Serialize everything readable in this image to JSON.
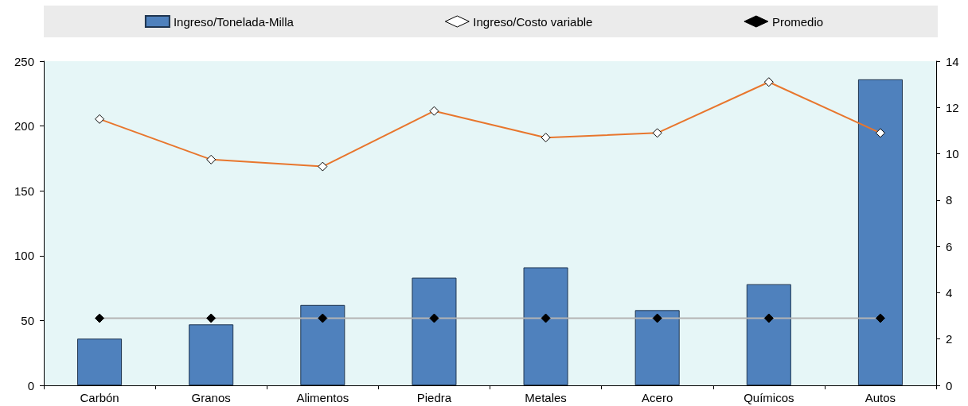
{
  "chart_data": {
    "type": "bar",
    "categories": [
      "Carbón",
      "Granos",
      "Alimentos",
      "Piedra",
      "Metales",
      "Acero",
      "Químicos",
      "Autos"
    ],
    "series": [
      {
        "name": "Ingreso/Tonelada-Milla",
        "color": "#4f81bd",
        "values": [
          36,
          47,
          62,
          83,
          91,
          58,
          78,
          236
        ]
      },
      {
        "name": "Ingreso/Costo variable",
        "type": "line",
        "axis": "y2",
        "color": "#e8762d",
        "marker": "diamond",
        "values": [
          11.5,
          9.75,
          9.45,
          11.85,
          10.7,
          10.9,
          13.1,
          10.9
        ]
      },
      {
        "name": "Promedio",
        "type": "line",
        "axis": "y2",
        "color": "#b4b4b4",
        "marker": "diamond",
        "values": [
          2.9,
          2.9,
          2.9,
          2.9,
          2.9,
          2.9,
          2.9,
          2.9
        ]
      }
    ],
    "ylim": [
      0,
      250
    ],
    "yticks": [
      0,
      50,
      100,
      150,
      200,
      250
    ],
    "y2lim": [
      0,
      14
    ],
    "y2ticks": [
      0,
      2,
      4,
      6,
      8,
      10,
      12,
      14
    ],
    "grid": false,
    "legend": "top"
  }
}
